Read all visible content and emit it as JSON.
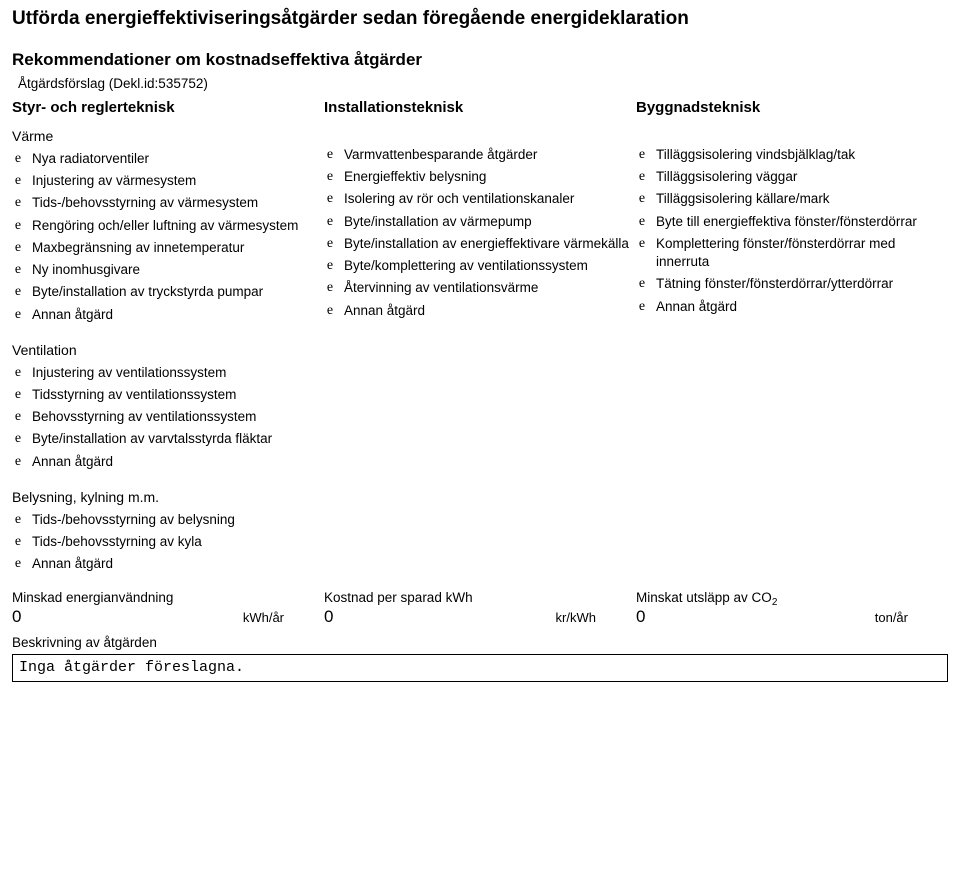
{
  "title": "Utförda energieffektiviseringsåtgärder sedan föregående energideklaration",
  "subtitle": "Rekommendationer om kostnadseffektiva åtgärder",
  "proposal": "Åtgärdsförslag (Dekl.id:535752)",
  "columns": {
    "styr": {
      "header": "Styr- och reglerteknisk",
      "groups": [
        {
          "label": "Värme",
          "items": [
            "Nya radiatorventiler",
            "Injustering av värmesystem",
            "Tids-/behovsstyrning av värmesystem",
            "Rengöring och/eller luftning av värmesystem",
            "Maxbegränsning av innetemperatur",
            "Ny inomhusgivare",
            "Byte/installation av tryckstyrda pumpar",
            "Annan åtgärd"
          ]
        },
        {
          "label": "Ventilation",
          "items": [
            "Injustering av ventilationssystem",
            "Tidsstyrning av ventilationssystem",
            "Behovsstyrning av ventilationssystem",
            "Byte/installation av varvtalsstyrda fläktar",
            "Annan åtgärd"
          ]
        },
        {
          "label": "Belysning, kylning m.m.",
          "items": [
            "Tids-/behovsstyrning av belysning",
            "Tids-/behovsstyrning av kyla",
            "Annan åtgärd"
          ]
        }
      ]
    },
    "install": {
      "header": "Installationsteknisk",
      "items": [
        "Varmvattenbesparande åtgärder",
        "Energieffektiv belysning",
        "Isolering av rör och ventilationskanaler",
        "Byte/installation av värmepump",
        "Byte/installation av energieffektivare värmekälla",
        "Byte/komplettering av ventilationssystem",
        "Återvinning av ventilationsvärme",
        "Annan åtgärd"
      ]
    },
    "byggnad": {
      "header": "Byggnadsteknisk",
      "items": [
        "Tilläggsisolering vindsbjälklag/tak",
        "Tilläggsisolering väggar",
        "Tilläggsisolering källare/mark",
        "Byte till energieffektiva fönster/fönsterdörrar",
        "Komplettering fönster/fönsterdörrar med innerruta",
        "Tätning fönster/fönsterdörrar/ytterdörrar",
        "Annan åtgärd"
      ]
    }
  },
  "triple": {
    "a": {
      "label": "Minskad energianvändning",
      "value": "0",
      "unit": "kWh/år"
    },
    "b": {
      "label": "Kostnad per sparad kWh",
      "value": "0",
      "unit": "kr/kWh"
    },
    "c": {
      "label": "Minskat utsläpp av CO",
      "sub": "2",
      "value": "0",
      "unit": "ton/år"
    }
  },
  "desc": {
    "label": "Beskrivning av åtgärden",
    "value": "Inga åtgärder föreslagna."
  },
  "bullet_char": "e"
}
